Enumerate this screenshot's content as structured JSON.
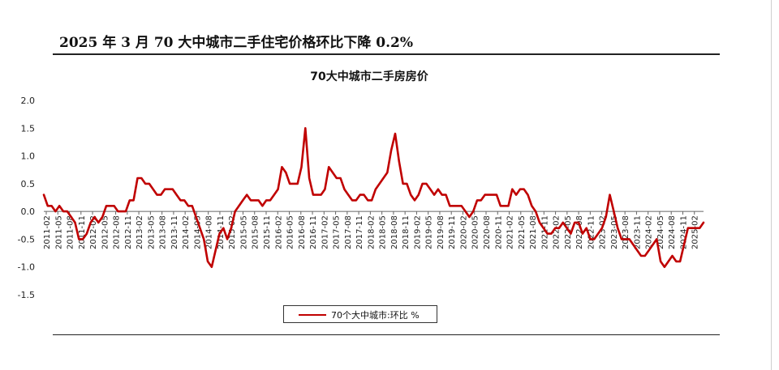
{
  "page": {
    "heading": "2025 年 3 月 70 大中城市二手住宅价格环比下降 0.2%"
  },
  "chart_data": {
    "type": "line",
    "title": "70大中城市二手房房价",
    "xlabel": "",
    "ylabel": "",
    "ylim": [
      -1.5,
      2.0
    ],
    "yticks": [
      "2.0",
      "1.5",
      "1.0",
      "0.5",
      "0.0",
      "-0.5",
      "-1.0",
      "-1.5"
    ],
    "x_tick_labels": [
      "2011-02",
      "2011-05",
      "2011-08",
      "2011-11",
      "2012-02",
      "2012-05",
      "2012-08",
      "2012-11",
      "2013-02",
      "2013-05",
      "2013-08",
      "2013-11",
      "2014-02",
      "2014-05",
      "2014-08",
      "2014-11",
      "2015-02",
      "2015-05",
      "2015-08",
      "2015-11",
      "2016-02",
      "2016-05",
      "2016-08",
      "2016-11",
      "2017-02",
      "2017-05",
      "2017-08",
      "2017-11",
      "2018-02",
      "2018-05",
      "2018-08",
      "2018-11",
      "2019-02",
      "2019-05",
      "2019-08",
      "2019-11",
      "2020-02",
      "2020-05",
      "2020-08",
      "2020-11",
      "2021-02",
      "2021-05",
      "2021-08",
      "2021-11",
      "2022-02",
      "2022-05",
      "2022-08",
      "2022-11",
      "2023-02",
      "2023-05",
      "2023-08",
      "2023-11",
      "2024-02",
      "2024-05",
      "2024-08",
      "2024-11",
      "2025-02"
    ],
    "series": [
      {
        "name": "70个大中城市:环比 %",
        "color": "#c00000",
        "values": [
          0.3,
          0.1,
          0.1,
          0.0,
          0.1,
          0.0,
          0.0,
          -0.1,
          -0.2,
          -0.5,
          -0.5,
          -0.4,
          -0.2,
          -0.1,
          -0.2,
          -0.1,
          0.1,
          0.1,
          0.1,
          0.0,
          0.0,
          0.0,
          0.2,
          0.2,
          0.6,
          0.6,
          0.5,
          0.5,
          0.4,
          0.3,
          0.3,
          0.4,
          0.4,
          0.4,
          0.3,
          0.2,
          0.2,
          0.1,
          0.1,
          -0.1,
          -0.3,
          -0.5,
          -0.9,
          -1.0,
          -0.7,
          -0.4,
          -0.3,
          -0.5,
          -0.3,
          0.0,
          0.1,
          0.2,
          0.3,
          0.2,
          0.2,
          0.2,
          0.1,
          0.2,
          0.2,
          0.3,
          0.4,
          0.8,
          0.7,
          0.5,
          0.5,
          0.5,
          0.8,
          1.5,
          0.6,
          0.3,
          0.3,
          0.3,
          0.4,
          0.8,
          0.7,
          0.6,
          0.6,
          0.4,
          0.3,
          0.2,
          0.2,
          0.3,
          0.3,
          0.2,
          0.2,
          0.4,
          0.5,
          0.6,
          0.7,
          1.1,
          1.4,
          0.9,
          0.5,
          0.5,
          0.3,
          0.2,
          0.3,
          0.5,
          0.5,
          0.4,
          0.3,
          0.4,
          0.3,
          0.3,
          0.1,
          0.1,
          0.1,
          0.1,
          0.0,
          -0.1,
          0.0,
          0.2,
          0.2,
          0.3,
          0.3,
          0.3,
          0.3,
          0.1,
          0.1,
          0.1,
          0.4,
          0.3,
          0.4,
          0.4,
          0.3,
          0.1,
          0.0,
          -0.2,
          -0.3,
          -0.4,
          -0.4,
          -0.3,
          -0.3,
          -0.2,
          -0.3,
          -0.4,
          -0.2,
          -0.2,
          -0.4,
          -0.3,
          -0.5,
          -0.5,
          -0.4,
          -0.3,
          -0.1,
          0.3,
          0.0,
          -0.3,
          -0.5,
          -0.5,
          -0.5,
          -0.6,
          -0.7,
          -0.8,
          -0.8,
          -0.7,
          -0.6,
          -0.5,
          -0.9,
          -1.0,
          -0.9,
          -0.8,
          -0.9,
          -0.9,
          -0.6,
          -0.3,
          -0.3,
          -0.3,
          -0.3,
          -0.2
        ]
      }
    ],
    "legend_position": "bottom",
    "grid": false
  }
}
